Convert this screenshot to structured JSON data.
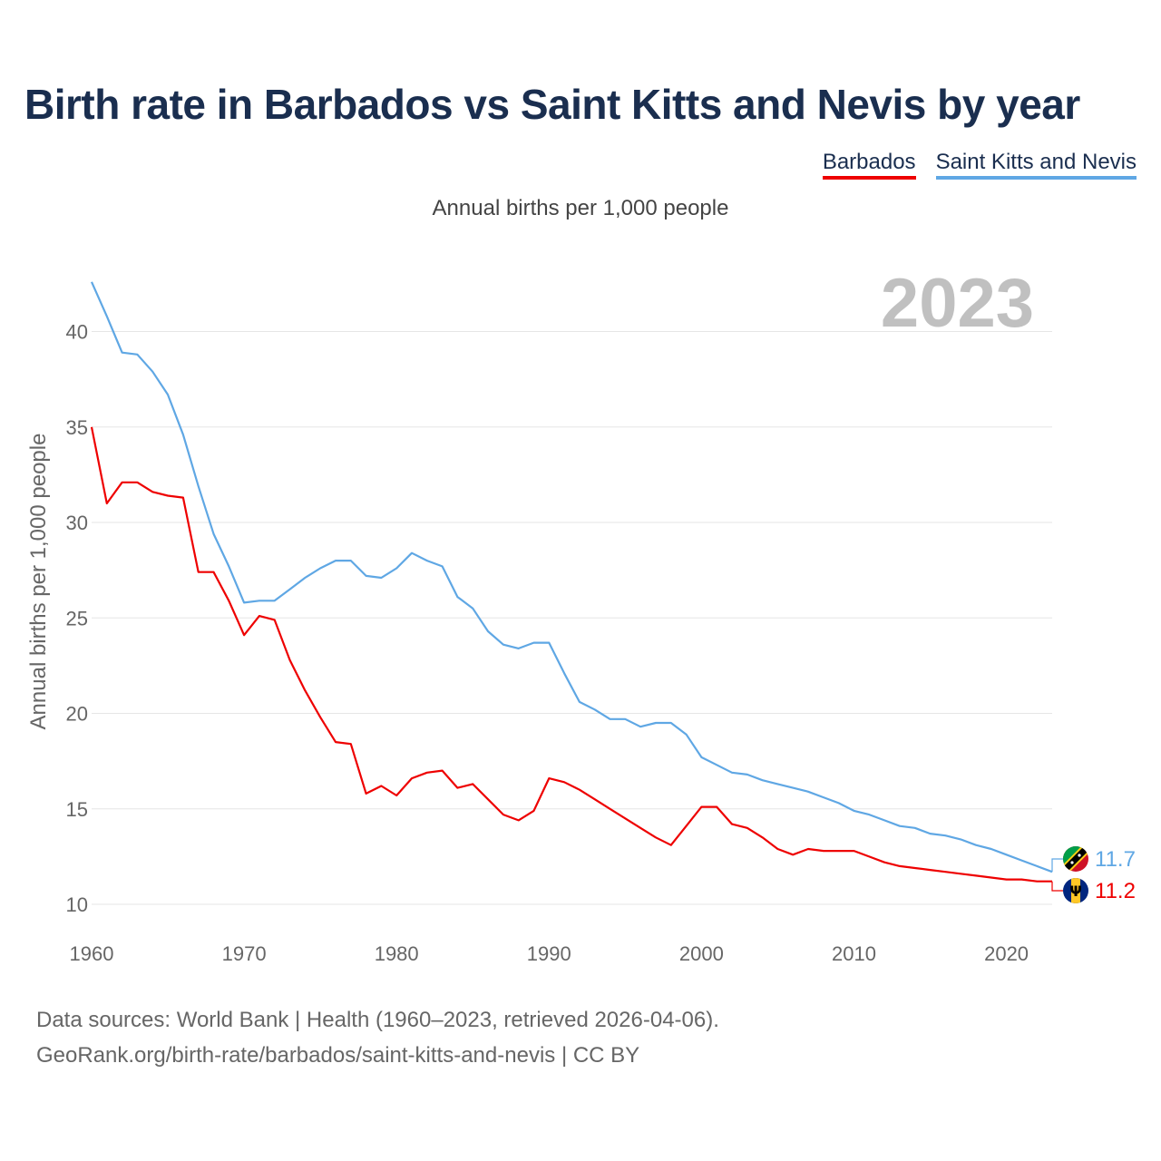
{
  "title": "Birth rate in Barbados vs Saint Kitts and Nevis by year",
  "subtitle": "Annual births per 1,000 people",
  "legend": {
    "barbados": "Barbados",
    "skn": "Saint Kitts and Nevis"
  },
  "source": {
    "line1": "Data sources: World Bank | Health (1960–2023, retrieved 2026-04-06).",
    "line2": "GeoRank.org/birth-rate/barbados/saint-kitts-and-nevis | CC BY"
  },
  "chart_data": {
    "type": "line",
    "title": "Birth rate in Barbados vs Saint Kitts and Nevis by year",
    "subtitle": "Annual births per 1,000 people",
    "year_marker": "2023",
    "xlabel": "",
    "ylabel": "Annual births per 1,000 people",
    "xlim": [
      1960,
      2023
    ],
    "ylim": [
      10,
      43
    ],
    "yticks": [
      10,
      15,
      20,
      25,
      30,
      35,
      40
    ],
    "xticks": [
      1960,
      1970,
      1980,
      1990,
      2000,
      2010,
      2020
    ],
    "grid": true,
    "legend_position": "top-right",
    "x": [
      1960,
      1961,
      1962,
      1963,
      1964,
      1965,
      1966,
      1967,
      1968,
      1969,
      1970,
      1971,
      1972,
      1973,
      1974,
      1975,
      1976,
      1977,
      1978,
      1979,
      1980,
      1981,
      1982,
      1983,
      1984,
      1985,
      1986,
      1987,
      1988,
      1989,
      1990,
      1991,
      1992,
      1993,
      1994,
      1995,
      1996,
      1997,
      1998,
      1999,
      2000,
      2001,
      2002,
      2003,
      2004,
      2005,
      2006,
      2007,
      2008,
      2009,
      2010,
      2011,
      2012,
      2013,
      2014,
      2015,
      2016,
      2017,
      2018,
      2019,
      2020,
      2021,
      2022,
      2023
    ],
    "series": [
      {
        "name": "Barbados",
        "color": "#ee0000",
        "end_label": "11.2",
        "values": [
          35.0,
          31.0,
          32.1,
          32.1,
          31.6,
          31.4,
          31.3,
          27.4,
          27.4,
          25.9,
          24.1,
          25.1,
          24.9,
          22.8,
          21.2,
          19.8,
          18.5,
          18.4,
          15.8,
          16.2,
          15.7,
          16.6,
          16.9,
          17.0,
          16.1,
          16.3,
          15.5,
          14.7,
          14.4,
          14.9,
          16.6,
          16.4,
          16.0,
          15.5,
          15.0,
          14.5,
          14.0,
          13.5,
          13.1,
          14.1,
          15.1,
          15.1,
          14.2,
          14.0,
          13.5,
          12.9,
          12.6,
          12.9,
          12.8,
          12.8,
          12.8,
          12.5,
          12.2,
          12.0,
          11.9,
          11.8,
          11.7,
          11.6,
          11.5,
          11.4,
          11.3,
          11.3,
          11.2,
          11.2
        ]
      },
      {
        "name": "Saint Kitts and Nevis",
        "color": "#5fa7e4",
        "end_label": "11.7",
        "values": [
          42.6,
          40.8,
          38.9,
          38.8,
          37.9,
          36.7,
          34.6,
          31.9,
          29.4,
          27.7,
          25.8,
          25.9,
          25.9,
          26.5,
          27.1,
          27.6,
          28.0,
          28.0,
          27.2,
          27.1,
          27.6,
          28.4,
          28.0,
          27.7,
          26.1,
          25.5,
          24.3,
          23.6,
          23.4,
          23.7,
          23.7,
          22.1,
          20.6,
          20.2,
          19.7,
          19.7,
          19.3,
          19.5,
          19.5,
          18.9,
          17.7,
          17.3,
          16.9,
          16.8,
          16.5,
          16.3,
          16.1,
          15.9,
          15.6,
          15.3,
          14.9,
          14.7,
          14.4,
          14.1,
          14.0,
          13.7,
          13.6,
          13.4,
          13.1,
          12.9,
          12.6,
          12.3,
          12.0,
          11.7
        ]
      }
    ]
  }
}
